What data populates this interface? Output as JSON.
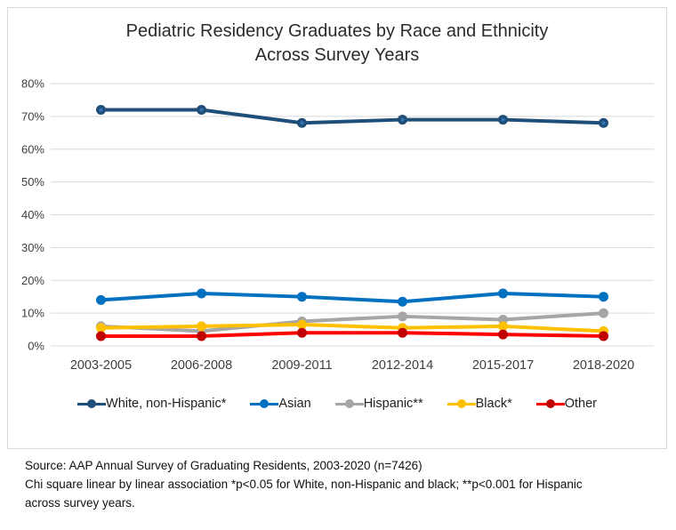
{
  "chart": {
    "title_line1": "Pediatric Residency Graduates by Race and Ethnicity",
    "title_line2": "Across Survey Years",
    "border_color": "#d9d9d9",
    "gridline_color": "#d9d9d9",
    "axis_text_color": "#404040"
  },
  "chart_data": {
    "type": "line",
    "title": "Pediatric Residency Graduates by Race and Ethnicity Across Survey Years",
    "categories": [
      "2003-2005",
      "2006-2008",
      "2009-2011",
      "2012-2014",
      "2015-2017",
      "2018-2020"
    ],
    "series": [
      {
        "name": "White, non-Hispanic*",
        "color": "#1F4E79",
        "marker_color": "#1F4E79",
        "marker_center": "#3674B5",
        "values": [
          72,
          72,
          68,
          69,
          69,
          68
        ]
      },
      {
        "name": "Asian",
        "color": "#0070C0",
        "marker_color": "#0070C0",
        "values": [
          14,
          16,
          15,
          13.5,
          16,
          15
        ]
      },
      {
        "name": "Hispanic**",
        "color": "#A6A6A6",
        "marker_color": "#A6A6A6",
        "values": [
          6,
          4.5,
          7.5,
          9,
          8,
          10
        ]
      },
      {
        "name": "Black*",
        "color": "#FFC000",
        "marker_color": "#FFC000",
        "values": [
          5.5,
          6,
          6.5,
          5.5,
          6,
          4.5
        ]
      },
      {
        "name": "Other",
        "color": "#FF0000",
        "marker_color": "#C00000",
        "values": [
          3,
          3,
          4,
          4,
          3.5,
          3
        ]
      }
    ],
    "ylim": [
      0,
      80
    ],
    "y_tick_step": 10,
    "y_ticks": [
      "0%",
      "10%",
      "20%",
      "30%",
      "40%",
      "50%",
      "60%",
      "70%",
      "80%"
    ],
    "grid": true,
    "legend_position": "bottom"
  },
  "footer": {
    "line1": "Source: AAP Annual Survey of Graduating Residents, 2003-2020 (n=7426)",
    "line2": "Chi square linear by linear association *p<0.05 for White, non-Hispanic and black; **p<0.001 for Hispanic",
    "line3": "across survey years."
  }
}
